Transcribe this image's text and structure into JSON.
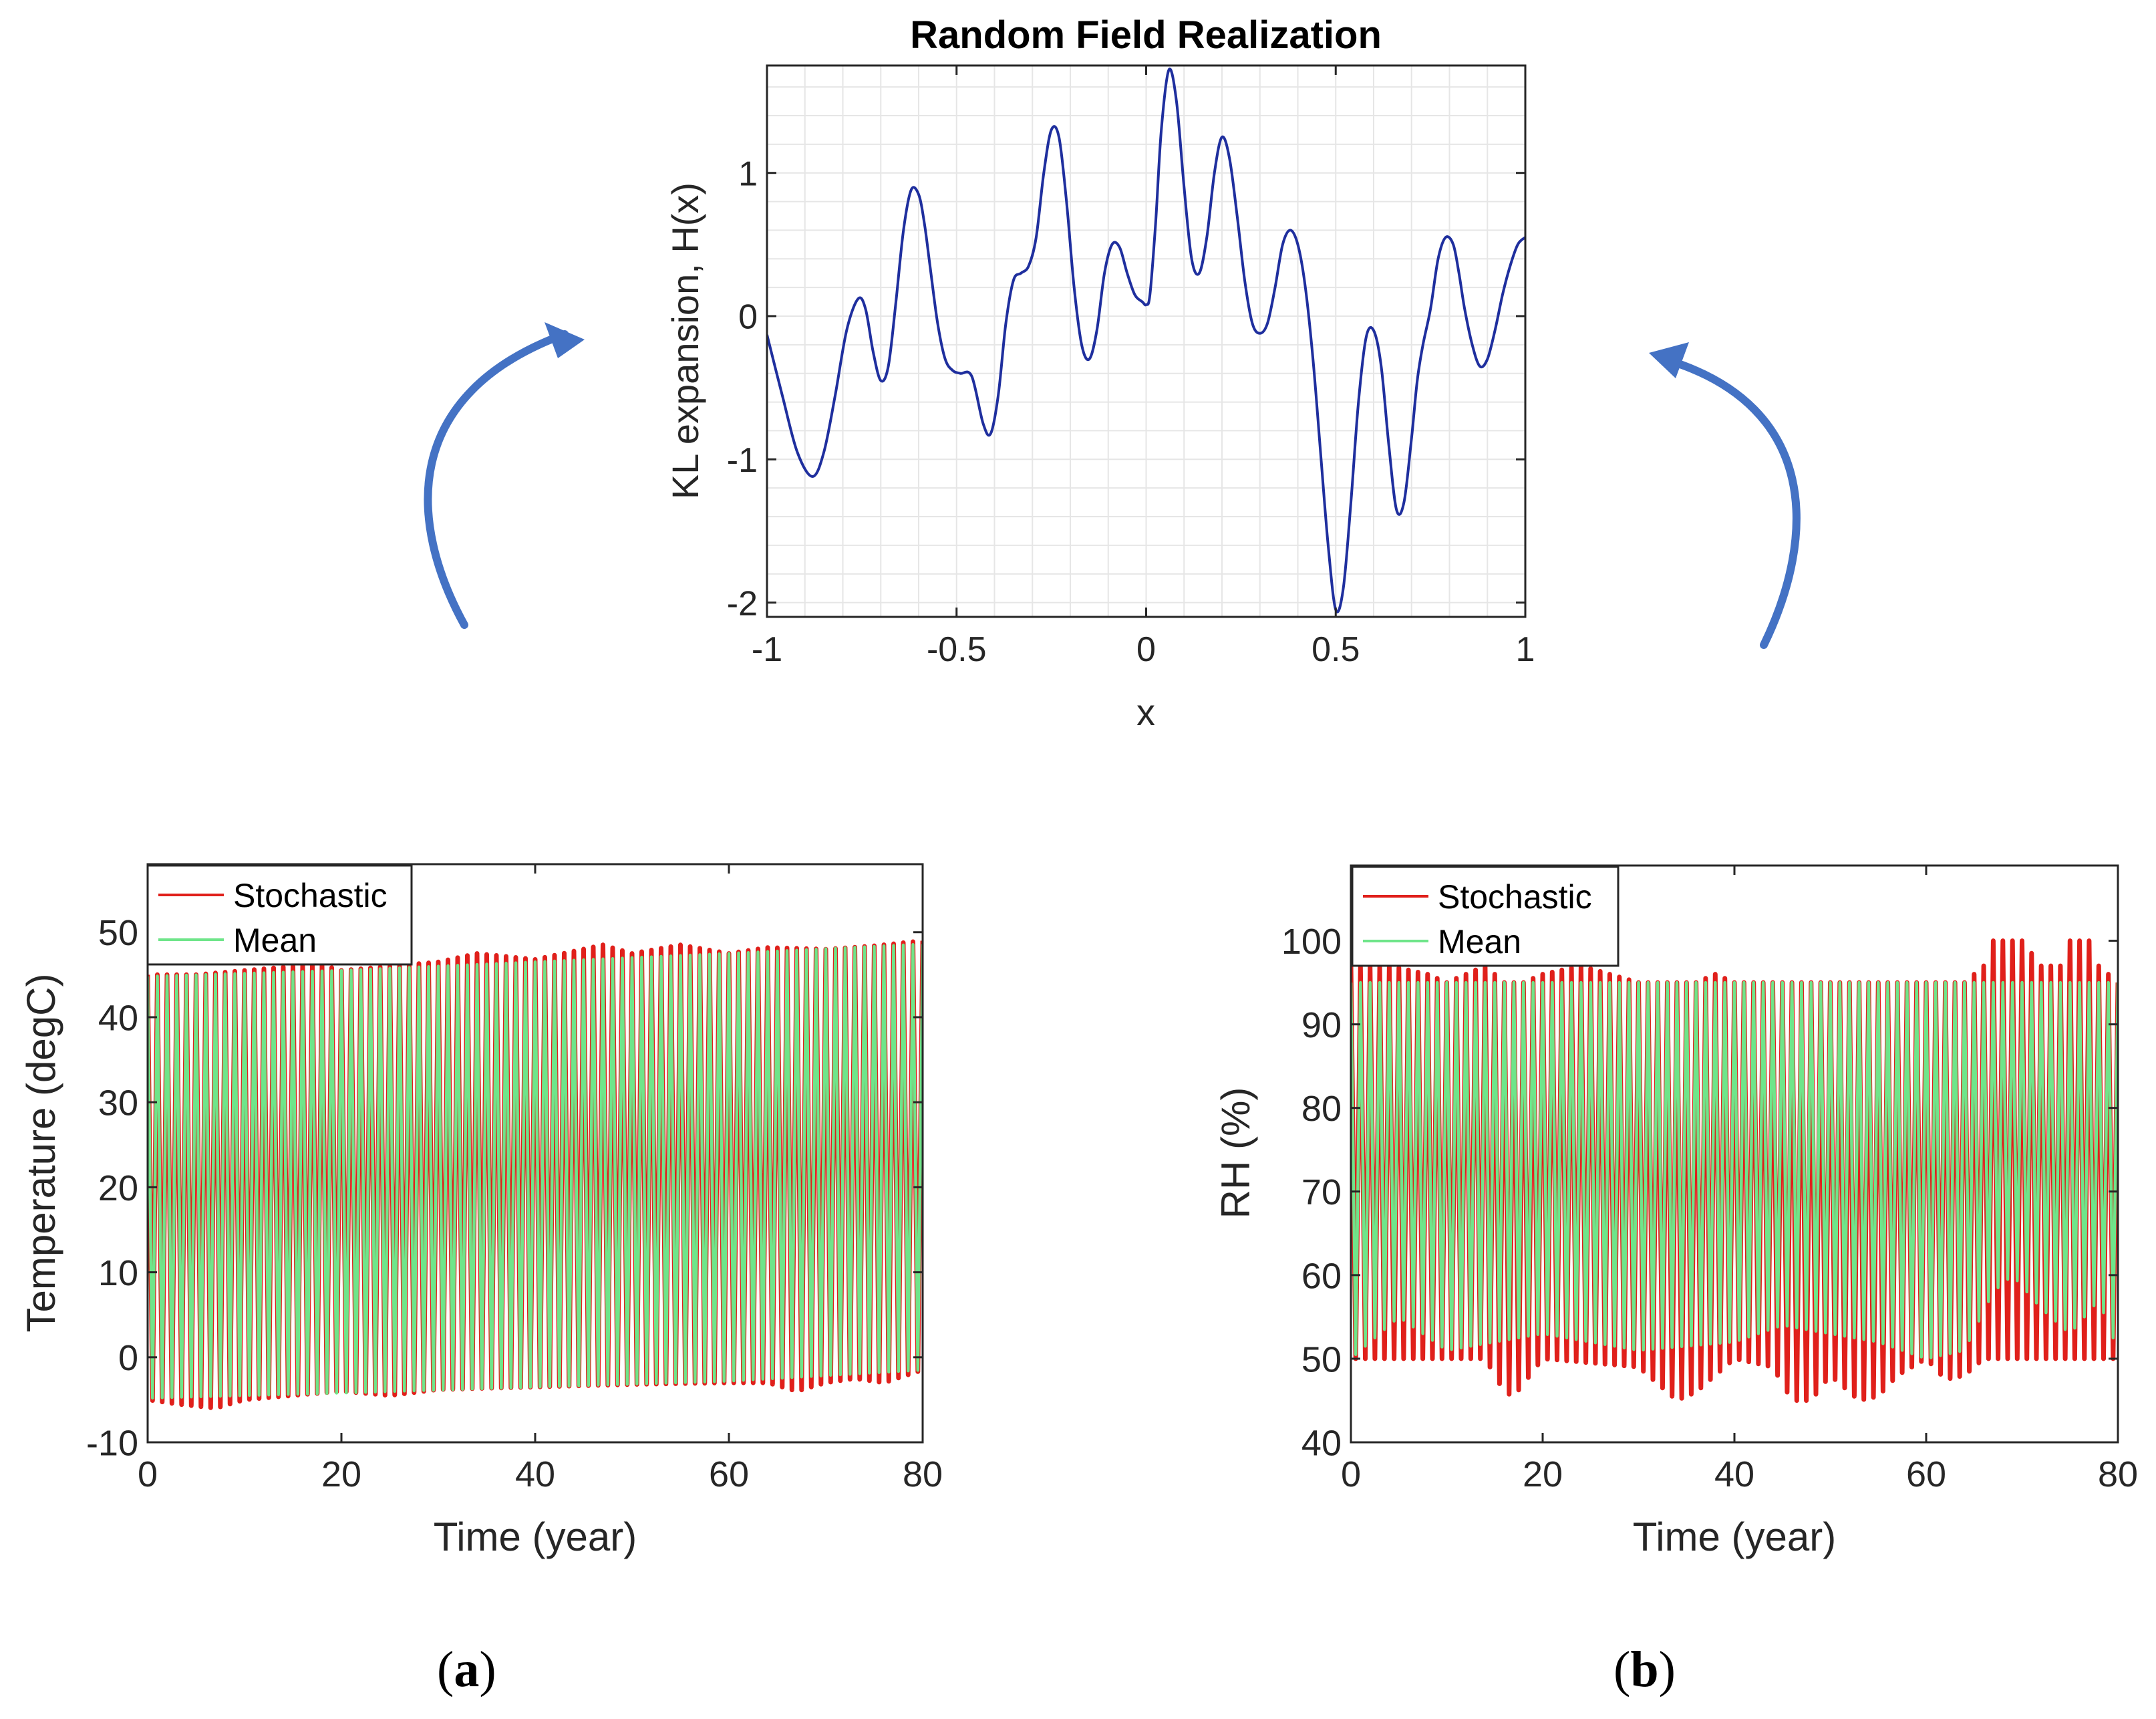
{
  "figure": {
    "panel_a_label": "a",
    "panel_b_label": "b",
    "arrow_color": "#4472c4"
  },
  "chart_data": [
    {
      "id": "random-field",
      "type": "line",
      "title": "Random Field Realization",
      "xlabel": "x",
      "ylabel": "KL expansion, H(x)",
      "xlim": [
        -1,
        1
      ],
      "ylim": [
        -2.1,
        1.75
      ],
      "xticks": [
        -1,
        -0.5,
        0,
        0.5,
        1
      ],
      "xtick_labels": [
        "-1",
        "-0.5",
        "0",
        "0.5",
        "1"
      ],
      "yticks": [
        -2,
        -1,
        0,
        1
      ],
      "ytick_labels": [
        "-2",
        "-1",
        "0",
        "1"
      ],
      "grid": true,
      "line_color": "#1f2f9e",
      "series": [
        {
          "name": "H(x)",
          "x": [
            -1.0,
            -0.96,
            -0.92,
            -0.88,
            -0.85,
            -0.82,
            -0.79,
            -0.76,
            -0.74,
            -0.72,
            -0.7,
            -0.68,
            -0.66,
            -0.64,
            -0.62,
            -0.6,
            -0.585,
            -0.57,
            -0.55,
            -0.53,
            -0.51,
            -0.49,
            -0.46,
            -0.43,
            -0.41,
            -0.39,
            -0.37,
            -0.35,
            -0.33,
            -0.31,
            -0.29,
            -0.27,
            -0.25,
            -0.23,
            -0.21,
            -0.19,
            -0.17,
            -0.15,
            -0.13,
            -0.11,
            -0.09,
            -0.07,
            -0.05,
            -0.03,
            -0.01,
            0.0,
            0.01,
            0.025,
            0.04,
            0.06,
            0.08,
            0.1,
            0.12,
            0.14,
            0.16,
            0.18,
            0.2,
            0.22,
            0.24,
            0.26,
            0.28,
            0.3,
            0.32,
            0.34,
            0.36,
            0.38,
            0.4,
            0.42,
            0.44,
            0.46,
            0.48,
            0.5,
            0.52,
            0.54,
            0.56,
            0.58,
            0.6,
            0.62,
            0.64,
            0.66,
            0.68,
            0.7,
            0.715,
            0.73,
            0.75,
            0.77,
            0.79,
            0.81,
            0.825,
            0.84,
            0.86,
            0.88,
            0.9,
            0.92,
            0.94,
            0.96,
            0.98,
            1.0
          ],
          "y": [
            -0.13,
            -0.55,
            -0.95,
            -1.12,
            -0.95,
            -0.55,
            -0.1,
            0.12,
            0.05,
            -0.25,
            -0.45,
            -0.35,
            0.1,
            0.6,
            0.88,
            0.85,
            0.65,
            0.35,
            -0.05,
            -0.3,
            -0.38,
            -0.4,
            -0.42,
            -0.75,
            -0.82,
            -0.55,
            -0.05,
            0.25,
            0.3,
            0.35,
            0.55,
            1.0,
            1.3,
            1.25,
            0.8,
            0.2,
            -0.2,
            -0.3,
            -0.1,
            0.3,
            0.5,
            0.48,
            0.3,
            0.15,
            0.1,
            0.08,
            0.15,
            0.65,
            1.3,
            1.72,
            1.5,
            0.9,
            0.4,
            0.3,
            0.55,
            1.0,
            1.25,
            1.1,
            0.7,
            0.25,
            -0.05,
            -0.12,
            -0.05,
            0.2,
            0.5,
            0.6,
            0.5,
            0.2,
            -0.3,
            -0.95,
            -1.6,
            -2.05,
            -1.9,
            -1.3,
            -0.6,
            -0.15,
            -0.1,
            -0.35,
            -0.9,
            -1.35,
            -1.3,
            -0.85,
            -0.45,
            -0.2,
            0.05,
            0.4,
            0.55,
            0.5,
            0.3,
            0.05,
            -0.2,
            -0.35,
            -0.3,
            -0.1,
            0.15,
            0.35,
            0.5,
            0.55
          ]
        }
      ]
    },
    {
      "id": "temperature",
      "type": "line",
      "title": "",
      "xlabel": "Time (year)",
      "ylabel": "Temperature (degC)",
      "xlim": [
        0,
        80
      ],
      "ylim": [
        -10,
        58
      ],
      "xticks": [
        0,
        20,
        40,
        60,
        80
      ],
      "xtick_labels": [
        "0",
        "20",
        "40",
        "60",
        "80"
      ],
      "yticks": [
        -10,
        0,
        10,
        20,
        30,
        40,
        50
      ],
      "ytick_labels": [
        "-10",
        "0",
        "10",
        "20",
        "30",
        "40",
        "50"
      ],
      "grid": false,
      "legend": "top-left",
      "cycles": 80,
      "series": [
        {
          "name": "Stochastic",
          "color": "#e0201b",
          "upper_envelope": {
            "x": [
              0,
              5,
              10,
              15,
              17,
              20,
              25,
              30,
              34,
              40,
              47,
              50,
              55,
              60,
              64,
              70,
              75,
              80
            ],
            "y": [
              45,
              45,
              45.5,
              46,
              46.5,
              45.5,
              46,
              46.5,
              47.5,
              46.8,
              48.5,
              47.5,
              48.5,
              47.5,
              48.2,
              48,
              48.4,
              49
            ]
          },
          "lower_envelope": {
            "x": [
              0,
              3,
              7,
              10,
              15,
              20,
              25,
              30,
              40,
              50,
              60,
              64,
              67,
              70,
              73,
              76,
              80
            ],
            "y": [
              -5,
              -5.5,
              -6,
              -5,
              -4.5,
              -4,
              -4.5,
              -3.8,
              -3.5,
              -3.2,
              -3,
              -3,
              -4,
              -3,
              -2.5,
              -3,
              -1.5
            ]
          }
        },
        {
          "name": "Mean",
          "color": "#6fe58a",
          "upper_envelope": {
            "x": [
              0,
              20,
              40,
              60,
              80
            ],
            "y": [
              44.8,
              45.5,
              46.5,
              47.5,
              48.6
            ]
          },
          "lower_envelope": {
            "x": [
              0,
              20,
              40,
              60,
              80
            ],
            "y": [
              -4.8,
              -4.2,
              -3.5,
              -2.8,
              -1.5
            ]
          }
        }
      ]
    },
    {
      "id": "relative-humidity",
      "type": "line",
      "title": "",
      "xlabel": "Time (year)",
      "ylabel": "RH (%)",
      "xlim": [
        0,
        80
      ],
      "ylim": [
        40,
        109
      ],
      "xticks": [
        0,
        20,
        40,
        60,
        80
      ],
      "xtick_labels": [
        "0",
        "20",
        "40",
        "60",
        "80"
      ],
      "yticks": [
        40,
        50,
        60,
        70,
        80,
        90,
        100
      ],
      "ytick_labels": [
        "40",
        "50",
        "60",
        "70",
        "80",
        "90",
        "100"
      ],
      "grid": false,
      "legend": "top-left",
      "cycles": 80,
      "series": [
        {
          "name": "Stochastic",
          "color": "#e0201b",
          "upper_envelope": {
            "x": [
              0,
              4,
              8,
              10,
              12,
              14,
              16,
              18,
              20,
              24,
              27,
              30,
              36,
              38,
              40,
              50,
              58,
              60,
              64,
              66,
              67,
              70,
              72,
              74,
              75,
              77,
              78,
              80
            ],
            "y": [
              97,
              97,
              96,
              95,
              96,
              97,
              95,
              95,
              96,
              97,
              96,
              95,
              95,
              96,
              95,
              95,
              95,
              95,
              95,
              97,
              100,
              100,
              97,
              97,
              100,
              100,
              97,
              95
            ]
          },
          "lower_envelope": {
            "x": [
              0,
              10,
              14,
              16,
              17,
              18,
              20,
              30,
              33,
              34,
              36,
              40,
              44,
              46,
              48,
              50,
              53,
              55,
              57,
              60,
              62,
              64,
              66,
              80
            ],
            "y": [
              50,
              50,
              50,
              46,
              45.5,
              47,
              50,
              49,
              46,
              45,
              46,
              50,
              49,
              45,
              45,
              48,
              45,
              45.5,
              48,
              50,
              47.5,
              48,
              50,
              50
            ]
          }
        },
        {
          "name": "Mean",
          "color": "#6fe58a",
          "upper_envelope": {
            "x": [
              0,
              20,
              40,
              60,
              80
            ],
            "y": [
              95,
              95,
              95,
              95,
              95
            ]
          },
          "lower_envelope": {
            "x": [
              0,
              5,
              10,
              20,
              30,
              40,
              45,
              50,
              55,
              60,
              64,
              67,
              69,
              72,
              75,
              78,
              80
            ],
            "y": [
              50,
              55,
              51,
              53,
              51,
              52,
              54,
              53,
              52,
              50,
              51,
              58,
              60,
              56,
              53,
              57,
              51
            ]
          }
        }
      ]
    }
  ]
}
